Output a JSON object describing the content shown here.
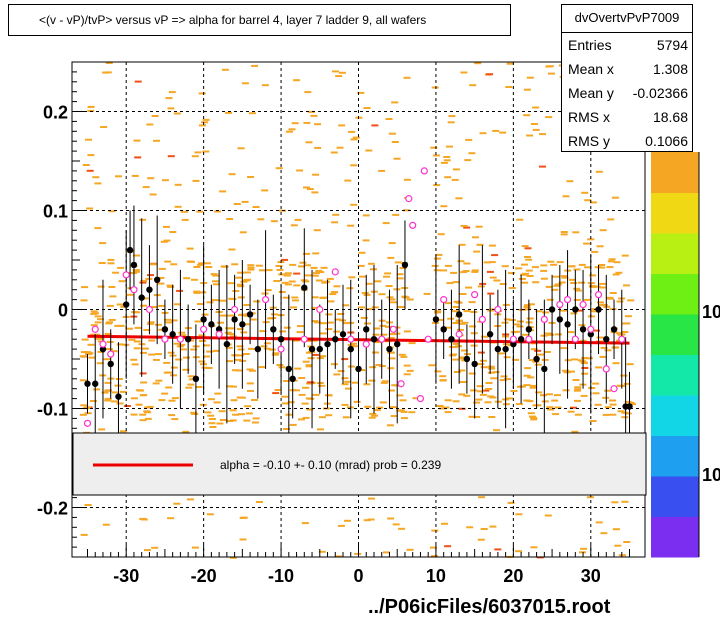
{
  "title": "<(v - vP)/tvP> versus   vP => alpha for barrel 4, layer 7 ladder 9, all wafers",
  "stats": {
    "name": "dvOvertvPvP7009",
    "rows": [
      {
        "key": "Entries",
        "value": "5794"
      },
      {
        "key": "Mean x",
        "value": "1.308"
      },
      {
        "key": "Mean y",
        "value": "-0.02366"
      },
      {
        "key": "RMS x",
        "value": "18.68"
      },
      {
        "key": "RMS y",
        "value": "0.1066"
      }
    ]
  },
  "legend": {
    "text": "alpha =   -0.10 +-  0.10 (mrad) prob = 0.239",
    "line_color": "#ff0000"
  },
  "footer": "../P06icFiles/6037015.root",
  "colors": {
    "hist_cell": "#f5a623",
    "black_points": "#000000",
    "pink_markers": "#ff33cc",
    "fit_line": "#ee0000",
    "palette": [
      "#7b2ef0",
      "#3a4ff0",
      "#1f9ff0",
      "#12d6e6",
      "#14e8a8",
      "#27e645",
      "#6ef014",
      "#b9f014",
      "#f0d814",
      "#f5a623"
    ]
  },
  "chart_data": {
    "type": "scatter",
    "x_ticks": [
      "-30",
      "-20",
      "-10",
      "0",
      "10",
      "20",
      "30"
    ],
    "y_ticks": [
      "-0.2",
      "-0.1",
      "0",
      "0.1",
      "0.2"
    ],
    "xlim": [
      -37,
      37
    ],
    "ylim": [
      -0.25,
      0.25
    ],
    "grid": true,
    "palette_labels": [
      "10",
      "10"
    ],
    "fit": {
      "x": [
        -35,
        35
      ],
      "y": [
        -0.027,
        -0.034
      ]
    },
    "profile_points": [
      {
        "x": -35.0,
        "y": -0.075
      },
      {
        "x": -34.0,
        "y": -0.075
      },
      {
        "x": -33.0,
        "y": -0.04
      },
      {
        "x": -32.0,
        "y": -0.055
      },
      {
        "x": -31.0,
        "y": -0.088
      },
      {
        "x": -30.0,
        "y": 0.005
      },
      {
        "x": -29.5,
        "y": 0.06
      },
      {
        "x": -29.0,
        "y": 0.045
      },
      {
        "x": -28.0,
        "y": 0.012
      },
      {
        "x": -27.0,
        "y": 0.02
      },
      {
        "x": -26.0,
        "y": 0.03
      },
      {
        "x": -25.0,
        "y": -0.02
      },
      {
        "x": -24.0,
        "y": -0.025
      },
      {
        "x": -23.0,
        "y": -0.03
      },
      {
        "x": -22.0,
        "y": -0.03
      },
      {
        "x": -21.0,
        "y": -0.07
      },
      {
        "x": -20.0,
        "y": -0.01
      },
      {
        "x": -19.0,
        "y": -0.015
      },
      {
        "x": -18.0,
        "y": -0.02
      },
      {
        "x": -17.0,
        "y": -0.035
      },
      {
        "x": -16.0,
        "y": -0.01
      },
      {
        "x": -15.0,
        "y": -0.015
      },
      {
        "x": -14.0,
        "y": -0.005
      },
      {
        "x": -13.0,
        "y": -0.04
      },
      {
        "x": -12.0,
        "y": 0.01
      },
      {
        "x": -11.0,
        "y": -0.02
      },
      {
        "x": -10.0,
        "y": -0.03
      },
      {
        "x": -9.0,
        "y": -0.06
      },
      {
        "x": -8.5,
        "y": -0.07
      },
      {
        "x": -7.0,
        "y": 0.022
      },
      {
        "x": -6.0,
        "y": -0.04
      },
      {
        "x": -5.0,
        "y": -0.04
      },
      {
        "x": -4.0,
        "y": -0.035
      },
      {
        "x": -3.0,
        "y": -0.03
      },
      {
        "x": -2.0,
        "y": -0.025
      },
      {
        "x": -1.0,
        "y": -0.04
      },
      {
        "x": 0.0,
        "y": -0.06
      },
      {
        "x": 1.0,
        "y": -0.02
      },
      {
        "x": 2.0,
        "y": -0.03
      },
      {
        "x": 3.0,
        "y": -0.03
      },
      {
        "x": 4.0,
        "y": -0.04
      },
      {
        "x": 5.0,
        "y": -0.035
      },
      {
        "x": 6.0,
        "y": 0.045
      },
      {
        "x": 10.0,
        "y": -0.01
      },
      {
        "x": 11.0,
        "y": -0.02
      },
      {
        "x": 12.0,
        "y": -0.03
      },
      {
        "x": 13.0,
        "y": -0.005
      },
      {
        "x": 14.0,
        "y": -0.05
      },
      {
        "x": 15.0,
        "y": -0.055
      },
      {
        "x": 16.0,
        "y": -0.01
      },
      {
        "x": 17.0,
        "y": -0.025
      },
      {
        "x": 18.0,
        "y": -0.04
      },
      {
        "x": 19.0,
        "y": -0.04
      },
      {
        "x": 20.0,
        "y": -0.035
      },
      {
        "x": 21.0,
        "y": -0.03
      },
      {
        "x": 22.0,
        "y": -0.02
      },
      {
        "x": 23.0,
        "y": -0.05
      },
      {
        "x": 24.0,
        "y": -0.06
      },
      {
        "x": 25.0,
        "y": 0.0
      },
      {
        "x": 26.0,
        "y": -0.01
      },
      {
        "x": 27.0,
        "y": -0.015
      },
      {
        "x": 28.0,
        "y": 0.0
      },
      {
        "x": 29.0,
        "y": -0.02
      },
      {
        "x": 30.0,
        "y": -0.025
      },
      {
        "x": 31.0,
        "y": 0.0
      },
      {
        "x": 32.0,
        "y": -0.03
      },
      {
        "x": 33.0,
        "y": -0.02
      },
      {
        "x": 34.0,
        "y": -0.03
      },
      {
        "x": 34.5,
        "y": -0.098
      },
      {
        "x": 35.0,
        "y": -0.098
      }
    ],
    "pink_markers": [
      {
        "x": -35.0,
        "y": -0.115
      },
      {
        "x": -34.0,
        "y": -0.02
      },
      {
        "x": -33.0,
        "y": -0.035
      },
      {
        "x": -32.0,
        "y": -0.045
      },
      {
        "x": -30.0,
        "y": 0.035
      },
      {
        "x": -29.0,
        "y": 0.02
      },
      {
        "x": -27.0,
        "y": 0.0
      },
      {
        "x": -25.0,
        "y": -0.03
      },
      {
        "x": -23.0,
        "y": -0.03
      },
      {
        "x": -20.0,
        "y": -0.02
      },
      {
        "x": -18.0,
        "y": -0.025
      },
      {
        "x": -16.0,
        "y": 0.0
      },
      {
        "x": -12.0,
        "y": 0.01
      },
      {
        "x": -10.0,
        "y": -0.04
      },
      {
        "x": -7.0,
        "y": -0.03
      },
      {
        "x": -5.0,
        "y": 0.0
      },
      {
        "x": -3.0,
        "y": 0.038
      },
      {
        "x": -1.0,
        "y": -0.03
      },
      {
        "x": 1.0,
        "y": -0.035
      },
      {
        "x": 3.0,
        "y": -0.03
      },
      {
        "x": 4.5,
        "y": -0.02
      },
      {
        "x": 5.5,
        "y": -0.075
      },
      {
        "x": 6.5,
        "y": 0.112
      },
      {
        "x": 7.0,
        "y": 0.085
      },
      {
        "x": 8.0,
        "y": -0.09
      },
      {
        "x": 8.5,
        "y": 0.14
      },
      {
        "x": 9.0,
        "y": -0.03
      },
      {
        "x": 11.0,
        "y": 0.01
      },
      {
        "x": 13.0,
        "y": -0.025
      },
      {
        "x": 15.0,
        "y": 0.015
      },
      {
        "x": 16.0,
        "y": -0.01
      },
      {
        "x": 18.0,
        "y": 0.0
      },
      {
        "x": 20.0,
        "y": -0.03
      },
      {
        "x": 22.0,
        "y": -0.03
      },
      {
        "x": 24.0,
        "y": -0.01
      },
      {
        "x": 26.0,
        "y": 0.005
      },
      {
        "x": 27.0,
        "y": 0.01
      },
      {
        "x": 28.0,
        "y": -0.03
      },
      {
        "x": 29.0,
        "y": 0.005
      },
      {
        "x": 30.0,
        "y": -0.02
      },
      {
        "x": 31.0,
        "y": 0.015
      },
      {
        "x": 32.0,
        "y": -0.06
      },
      {
        "x": 33.0,
        "y": -0.08
      },
      {
        "x": 34.0,
        "y": -0.03
      }
    ]
  }
}
